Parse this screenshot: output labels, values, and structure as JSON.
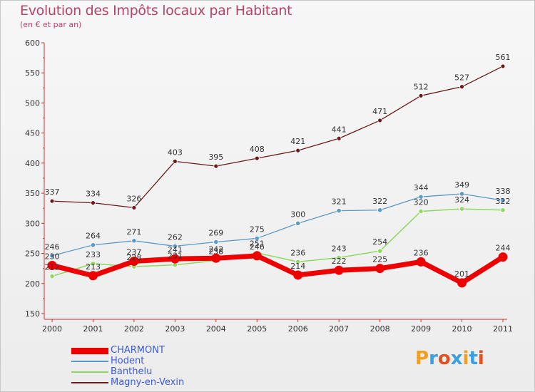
{
  "header": {
    "title": "Evolution des Impôts locaux par Habitant",
    "subtitle": "(en € et par an)"
  },
  "logo": {
    "text": "Proxiti",
    "colors": [
      "#f0a020",
      "#3aa0e0",
      "#e05020",
      "#3aa0e0",
      "#f0a020",
      "#3aa0e0",
      "#e05020"
    ]
  },
  "chart_data": {
    "type": "line",
    "title": "Evolution des Impôts locaux par Habitant",
    "subtitle": "(en € et par an)",
    "xlabel": "",
    "ylabel": "",
    "ylim": [
      150,
      600
    ],
    "yticks": [
      150,
      200,
      250,
      300,
      350,
      400,
      450,
      500,
      550,
      600
    ],
    "categories": [
      "2000",
      "2001",
      "2002",
      "2003",
      "2004",
      "2005",
      "2006",
      "2007",
      "2008",
      "2009",
      "2010",
      "2011"
    ],
    "series": [
      {
        "name": "Magny-en-Vexin",
        "color": "#6b1a1a",
        "values": [
          337,
          334,
          326,
          403,
          395,
          408,
          421,
          441,
          471,
          512,
          527,
          561
        ]
      },
      {
        "name": "Hodent",
        "color": "#5a9ac8",
        "values": [
          246,
          264,
          271,
          262,
          269,
          275,
          300,
          321,
          322,
          344,
          349,
          338
        ]
      },
      {
        "name": "Banthelu",
        "color": "#8ed860",
        "values": [
          212,
          233,
          228,
          231,
          238,
          251,
          236,
          243,
          254,
          320,
          324,
          322
        ]
      },
      {
        "name": "CHARMONT",
        "color": "#ee0000",
        "values": [
          230,
          213,
          237,
          241,
          242,
          246,
          214,
          222,
          225,
          236,
          201,
          244
        ]
      }
    ],
    "legend": [
      "CHARMONT",
      "Hodent",
      "Banthelu",
      "Magny-en-Vexin"
    ]
  }
}
